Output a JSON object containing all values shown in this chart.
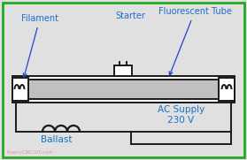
{
  "bg_color": "#e0e0e0",
  "border_color": "#22aa22",
  "line_color": "#1a1a1a",
  "inner_tube_color": "#c0c0c0",
  "label_color": "#1a6fcc",
  "arrow_color": "#2244cc",
  "watermark_color": "#ee88bb",
  "label_filament": "Filament",
  "label_starter": "Starter",
  "label_tube": "Fluorescent Tube",
  "label_ballast": "Ballast",
  "label_ac": "AC Supply",
  "label_v": "230 V",
  "watermark": "theoryCIRCUIT.com"
}
